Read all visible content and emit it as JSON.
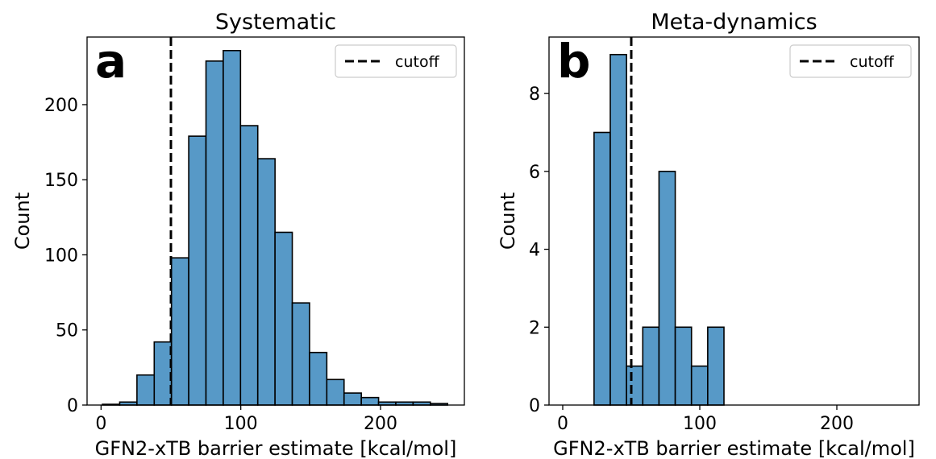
{
  "chart_data": [
    {
      "type": "bar",
      "panel_letter": "a",
      "title": "Systematic",
      "xlabel": "GFN2-xTB barrier estimate [kcal/mol]",
      "ylabel": "Count",
      "xlim": [
        -10,
        260
      ],
      "ylim": [
        0,
        245
      ],
      "xticks": [
        0,
        100,
        200
      ],
      "yticks": [
        0,
        50,
        100,
        150,
        200
      ],
      "bin_edges": [
        1,
        13.35,
        25.7,
        38.05,
        50.4,
        62.75,
        75.1,
        87.45,
        99.8,
        112.15,
        124.5,
        136.85,
        149.2,
        161.55,
        173.9,
        186.25,
        198.6,
        210.95,
        223.3,
        235.65,
        248
      ],
      "values": [
        0.5,
        2,
        20,
        42,
        98,
        179,
        229,
        236,
        186,
        164,
        115,
        68,
        35,
        17,
        8,
        5,
        2,
        2,
        2,
        1
      ],
      "cutoff": 50,
      "legend": {
        "entries": [
          "cutoff"
        ],
        "placement": "upper right"
      },
      "grid": false
    },
    {
      "type": "bar",
      "panel_letter": "b",
      "title": "Meta-dynamics",
      "xlabel": "GFN2-xTB barrier estimate [kcal/mol]",
      "ylabel": "Count",
      "xlim": [
        -10,
        260
      ],
      "ylim": [
        0,
        9.45
      ],
      "xticks": [
        0,
        100,
        200
      ],
      "yticks": [
        0,
        2,
        4,
        6,
        8
      ],
      "bin_edges": [
        11,
        22.85,
        34.7,
        46.55,
        58.4,
        70.25,
        82.1,
        93.95,
        105.8,
        117.65,
        129.5,
        141.35,
        153.2,
        165.05,
        176.9,
        188.75,
        200.6,
        212.45,
        224.3,
        236.15,
        248
      ],
      "values": [
        0,
        7,
        9,
        1,
        2,
        6,
        2,
        1,
        2,
        0,
        0,
        0,
        0,
        0,
        0,
        0,
        0,
        0,
        0,
        0
      ],
      "cutoff": 50,
      "legend": {
        "entries": [
          "cutoff"
        ],
        "placement": "upper right"
      },
      "grid": false
    }
  ]
}
